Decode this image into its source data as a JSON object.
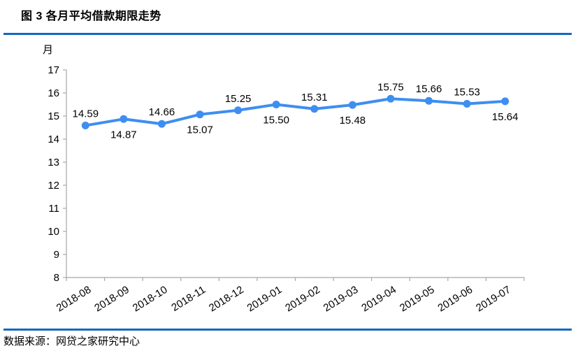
{
  "title": "图 3 各月平均借款期限走势",
  "source": "数据来源：网贷之家研究中心",
  "colors": {
    "line": "#3e8ef1",
    "marker": "#3e8ef1",
    "divider": "#1168c4",
    "axis": "#a6a6a6",
    "text": "#000000"
  },
  "chart_data": {
    "type": "line",
    "title": "图 3 各月平均借款期限走势",
    "unit_label": "月",
    "ylabel": "月",
    "xlabel": "",
    "categories": [
      "2018-08",
      "2018-09",
      "2018-10",
      "2018-11",
      "2018-12",
      "2019-01",
      "2019-02",
      "2019-03",
      "2019-04",
      "2019-05",
      "2019-06",
      "2019-07"
    ],
    "values": [
      14.59,
      14.87,
      14.66,
      15.07,
      15.25,
      15.5,
      15.31,
      15.48,
      15.75,
      15.66,
      15.53,
      15.64
    ],
    "data_labels": [
      "14.59",
      "14.87",
      "14.66",
      "15.07",
      "15.25",
      "15.50",
      "15.31",
      "15.48",
      "15.75",
      "15.66",
      "15.53",
      "15.64"
    ],
    "label_positions": [
      "above",
      "below",
      "above",
      "below",
      "above",
      "below",
      "above",
      "below",
      "above",
      "above",
      "above",
      "below"
    ],
    "ylim": [
      8,
      17
    ],
    "ytick_step": 1,
    "grid": false,
    "legend": false,
    "line_color": "#3e8ef1",
    "marker": "circle"
  }
}
